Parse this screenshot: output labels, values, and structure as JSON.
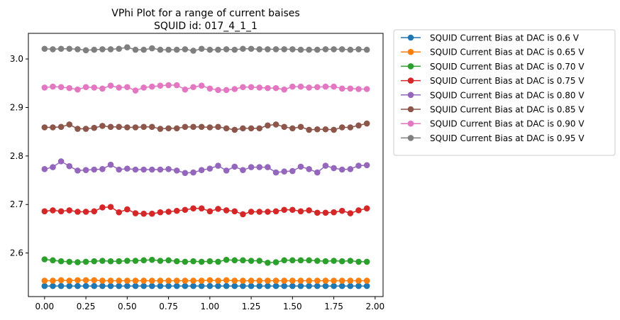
{
  "chart_data": {
    "type": "line",
    "title": "VPhi Plot for a range of current baises",
    "subtitle": "SQUID id: 017_4_1_1",
    "xlabel": "",
    "ylabel": "",
    "xlim": [
      -0.098,
      2.048
    ],
    "ylim": [
      2.5102,
      3.0528
    ],
    "x_ticks": [
      "0.00",
      "0.25",
      "0.50",
      "0.75",
      "1.00",
      "1.25",
      "1.50",
      "1.75",
      "2.00"
    ],
    "x_tick_values": [
      0,
      0.25,
      0.5,
      0.75,
      1.0,
      1.25,
      1.5,
      1.75,
      2.0
    ],
    "y_ticks": [
      "2.6",
      "2.7",
      "2.8",
      "2.9",
      "3.0"
    ],
    "y_tick_values": [
      2.6,
      2.7,
      2.8,
      2.9,
      3.0
    ],
    "grid": false,
    "legend_position": "outside upper right",
    "x": [
      0.0,
      0.05,
      0.1,
      0.15,
      0.2,
      0.25,
      0.3,
      0.35,
      0.4,
      0.45,
      0.5,
      0.55,
      0.6,
      0.65,
      0.7,
      0.75,
      0.8,
      0.85,
      0.9,
      0.95,
      1.0,
      1.05,
      1.1,
      1.15,
      1.2,
      1.25,
      1.3,
      1.35,
      1.4,
      1.45,
      1.5,
      1.55,
      1.6,
      1.65,
      1.7,
      1.75,
      1.8,
      1.85,
      1.9,
      1.95
    ],
    "series": [
      {
        "name": "SQUID Current Bias at DAC is 0.6  V",
        "color": "#1f77b4",
        "values": [
          2.532,
          2.532,
          2.532,
          2.532,
          2.532,
          2.532,
          2.532,
          2.532,
          2.532,
          2.532,
          2.532,
          2.532,
          2.532,
          2.532,
          2.532,
          2.532,
          2.532,
          2.532,
          2.532,
          2.532,
          2.532,
          2.532,
          2.532,
          2.532,
          2.532,
          2.532,
          2.532,
          2.532,
          2.532,
          2.532,
          2.532,
          2.532,
          2.532,
          2.532,
          2.532,
          2.532,
          2.532,
          2.532,
          2.532,
          2.532
        ]
      },
      {
        "name": "SQUID Current Bias at DAC is 0.65 V",
        "color": "#ff7f0e",
        "values": [
          2.543,
          2.543,
          2.544,
          2.543,
          2.544,
          2.544,
          2.544,
          2.543,
          2.543,
          2.543,
          2.543,
          2.543,
          2.543,
          2.543,
          2.543,
          2.543,
          2.543,
          2.543,
          2.543,
          2.543,
          2.544,
          2.543,
          2.544,
          2.543,
          2.543,
          2.543,
          2.543,
          2.543,
          2.543,
          2.543,
          2.543,
          2.543,
          2.543,
          2.543,
          2.543,
          2.543,
          2.543,
          2.543,
          2.543,
          2.543
        ]
      },
      {
        "name": "SQUID Current Bias at DAC is 0.70 V",
        "color": "#2ca02c",
        "values": [
          2.587,
          2.585,
          2.583,
          2.582,
          2.581,
          2.582,
          2.583,
          2.584,
          2.583,
          2.583,
          2.584,
          2.584,
          2.585,
          2.586,
          2.584,
          2.585,
          2.583,
          2.582,
          2.583,
          2.582,
          2.583,
          2.582,
          2.586,
          2.585,
          2.585,
          2.584,
          2.584,
          2.58,
          2.581,
          2.585,
          2.585,
          2.585,
          2.585,
          2.584,
          2.583,
          2.584,
          2.583,
          2.584,
          2.582,
          2.582
        ]
      },
      {
        "name": "SQUID Current Bias at DAC is 0.75 V",
        "color": "#d62728",
        "values": [
          2.686,
          2.688,
          2.686,
          2.688,
          2.685,
          2.685,
          2.686,
          2.694,
          2.695,
          2.684,
          2.69,
          2.682,
          2.681,
          2.681,
          2.684,
          2.685,
          2.687,
          2.689,
          2.692,
          2.692,
          2.686,
          2.691,
          2.688,
          2.686,
          2.68,
          2.685,
          2.685,
          2.685,
          2.686,
          2.689,
          2.689,
          2.686,
          2.688,
          2.683,
          2.683,
          2.684,
          2.687,
          2.682,
          2.688,
          2.692
        ]
      },
      {
        "name": "SQUID Current Bias at DAC is 0.80 V",
        "color": "#9467bd",
        "values": [
          2.773,
          2.777,
          2.789,
          2.779,
          2.77,
          2.771,
          2.772,
          2.773,
          2.782,
          2.772,
          2.774,
          2.772,
          2.772,
          2.772,
          2.772,
          2.773,
          2.77,
          2.765,
          2.766,
          2.771,
          2.774,
          2.78,
          2.77,
          2.778,
          2.771,
          2.777,
          2.777,
          2.777,
          2.766,
          2.768,
          2.769,
          2.778,
          2.773,
          2.766,
          2.78,
          2.775,
          2.772,
          2.773,
          2.78,
          2.781
        ]
      },
      {
        "name": "SQUID Current Bias at DAC is 0.85 V",
        "color": "#8c564b",
        "values": [
          2.859,
          2.859,
          2.86,
          2.865,
          2.856,
          2.856,
          2.858,
          2.862,
          2.86,
          2.86,
          2.859,
          2.859,
          2.86,
          2.86,
          2.856,
          2.857,
          2.857,
          2.86,
          2.86,
          2.86,
          2.859,
          2.86,
          2.857,
          2.854,
          2.857,
          2.857,
          2.857,
          2.863,
          2.865,
          2.86,
          2.857,
          2.86,
          2.854,
          2.855,
          2.855,
          2.854,
          2.859,
          2.859,
          2.863,
          2.867
        ]
      },
      {
        "name": "SQUID Current Bias at DAC is 0.90 V",
        "color": "#e377c2",
        "values": [
          2.941,
          2.943,
          2.942,
          2.94,
          2.937,
          2.942,
          2.941,
          2.939,
          2.945,
          2.941,
          2.942,
          2.935,
          2.941,
          2.943,
          2.945,
          2.946,
          2.946,
          2.937,
          2.942,
          2.945,
          2.939,
          2.936,
          2.936,
          2.938,
          2.942,
          2.942,
          2.941,
          2.94,
          2.94,
          2.937,
          2.943,
          2.943,
          2.941,
          2.942,
          2.943,
          2.943,
          2.939,
          2.939,
          2.938,
          2.938
        ]
      },
      {
        "name": "SQUID Current Bias at DAC is 0.95 V",
        "color": "#7f7f7f",
        "values": [
          3.021,
          3.02,
          3.021,
          3.021,
          3.02,
          3.018,
          3.019,
          3.02,
          3.02,
          3.021,
          3.024,
          3.019,
          3.019,
          3.022,
          3.019,
          3.019,
          3.019,
          3.02,
          3.017,
          3.021,
          3.019,
          3.019,
          3.02,
          3.019,
          3.021,
          3.021,
          3.02,
          3.02,
          3.02,
          3.02,
          3.02,
          3.019,
          3.019,
          3.019,
          3.02,
          3.02,
          3.02,
          3.019,
          3.02,
          3.019
        ]
      }
    ]
  }
}
